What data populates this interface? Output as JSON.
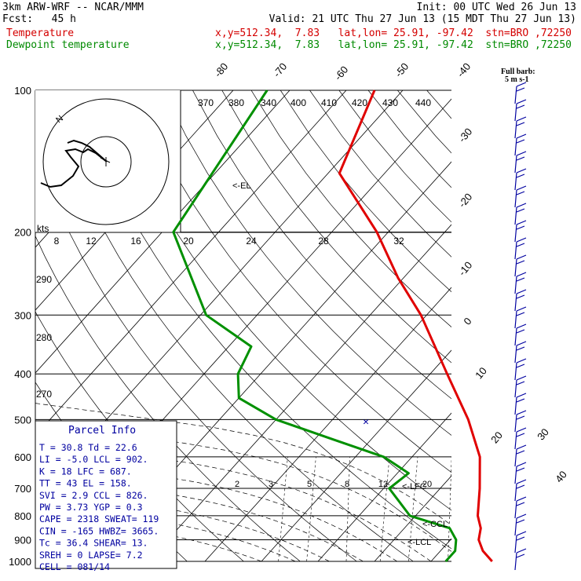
{
  "header": {
    "line1_left": "3km ARW-WRF -- NCAR/MMM",
    "line1_right": "Init: 00 UTC Wed 26 Jun 13",
    "fcst": "Fcst:   45 h",
    "valid": "Valid: 21 UTC Thu 27 Jun 13 (15 MDT Thu 27 Jun 13)",
    "temp_label": "Temperature",
    "temp_info": "x,y=512.34,  7.83   lat,lon= 25.91, -97.42  stn=BRO ,72250",
    "dew_label": "Dewpoint temperature",
    "dew_info": "x,y=512.34,  7.83   lat,lon= 25.91, -97.42  stn=BRO ,72250"
  },
  "colors": {
    "temperature": "#e00000",
    "dewpoint": "#009000",
    "barb": "#0000a0",
    "grid": "#000000"
  },
  "barb_legend": {
    "line1": "Full barb:",
    "line2": "5 m s-1"
  },
  "chart_data": {
    "type": "line",
    "subtype": "skew-T log-p",
    "y_scale": "log",
    "pressure_ticks": [
      100,
      200,
      300,
      400,
      500,
      600,
      700,
      800,
      900,
      1000
    ],
    "temperature_ticks": [
      -80,
      -70,
      -60,
      -50,
      -40,
      -30,
      -20,
      -10,
      0,
      10,
      20,
      30,
      40
    ],
    "theta_e_labels": [
      "370",
      "380",
      "340",
      "400",
      "410",
      "420",
      "430",
      "440"
    ],
    "mixing_ratio_labels": [
      "2",
      "3",
      "5",
      "8",
      "12",
      "20"
    ],
    "hodograph": {
      "speed_unit": "kts",
      "ring_labels": [
        "8",
        "12",
        "16",
        "20",
        "24",
        "28",
        "32"
      ],
      "height_labels": [
        "290",
        "280",
        "270"
      ],
      "labels": [
        "N"
      ]
    },
    "levels": [
      {
        "label": "<-EL"
      },
      {
        "label": "<-LFC"
      },
      {
        "label": "<-CCL"
      },
      {
        "label": "<-LCL"
      }
    ],
    "series": [
      {
        "name": "Temperature",
        "points": [
          [
            100,
            -65
          ],
          [
            150,
            -58
          ],
          [
            200,
            -42
          ],
          [
            250,
            -31
          ],
          [
            300,
            -21
          ],
          [
            400,
            -7
          ],
          [
            500,
            4
          ],
          [
            600,
            12
          ],
          [
            700,
            17
          ],
          [
            800,
            21
          ],
          [
            850,
            23.5
          ],
          [
            900,
            25
          ],
          [
            950,
            27.5
          ],
          [
            1000,
            30.8
          ]
        ]
      },
      {
        "name": "Dewpoint temperature",
        "points": [
          [
            100,
            -84
          ],
          [
            200,
            -78
          ],
          [
            300,
            -59
          ],
          [
            350,
            -46
          ],
          [
            400,
            -44
          ],
          [
            450,
            -40
          ],
          [
            500,
            -30
          ],
          [
            550,
            -17
          ],
          [
            600,
            -5
          ],
          [
            650,
            2
          ],
          [
            700,
            1
          ],
          [
            800,
            9
          ],
          [
            850,
            18
          ],
          [
            900,
            21
          ],
          [
            950,
            22.6
          ],
          [
            1000,
            22.6
          ]
        ]
      }
    ]
  },
  "parcel_info": {
    "title": "Parcel Info",
    "rows": [
      "T  =    30.8  Td =  22.6",
      "LI =    -5.0  LCL =  902.",
      "K  =      18  LFC = 687.",
      "TT =      43  EL  =  158.",
      "SVI =    2.9  CCL =  826.",
      "PW =    3.73  YGP =   0.3",
      "CAPE =  2318  SWEAT=  119",
      "CIN =   -165  HWBZ= 3665.",
      "Tc =    36.4  SHEAR=  13.",
      "SREH =     0  LAPSE=  7.2",
      "CELL = 081/14"
    ]
  }
}
